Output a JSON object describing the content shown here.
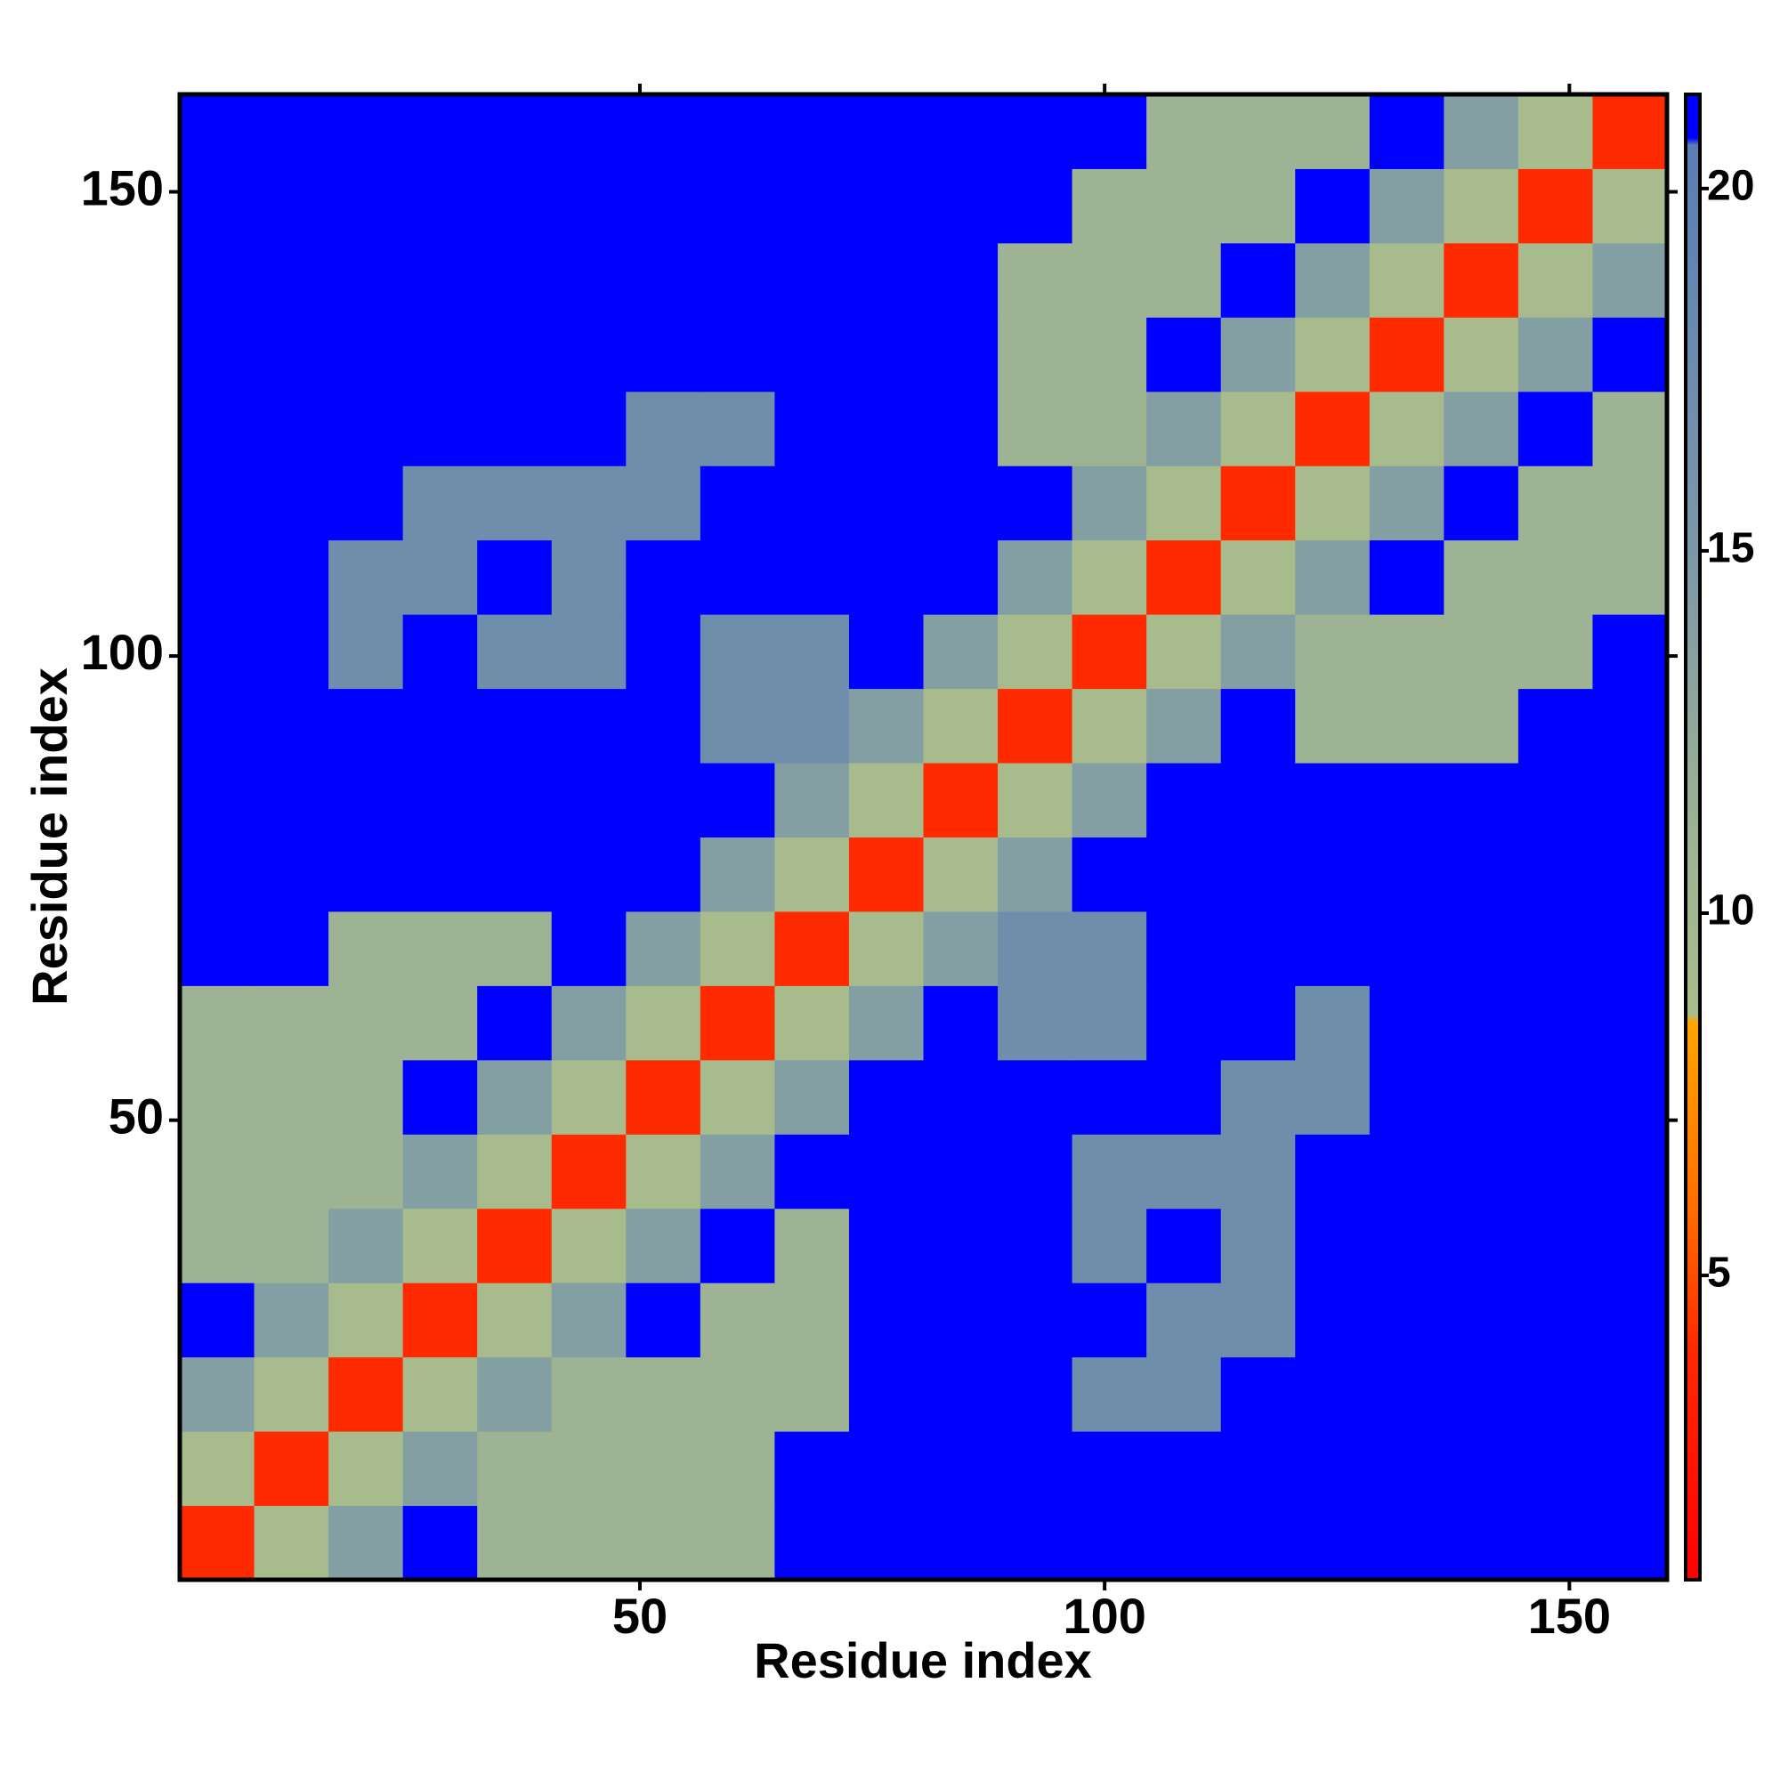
{
  "chart_data": {
    "type": "heatmap",
    "xlabel": "Residue index",
    "ylabel": "Residue index",
    "x": [
      4.5,
      12.5,
      20.5,
      28.5,
      36.5,
      44.5,
      52.5,
      60.5,
      68.5,
      76.5,
      84.5,
      92.5,
      100.5,
      108.5,
      116.5,
      124.5,
      132.5,
      140.5,
      148.5,
      156.5
    ],
    "y": [
      4.5,
      12.5,
      20.5,
      28.5,
      36.5,
      44.5,
      52.5,
      60.5,
      68.5,
      76.5,
      84.5,
      92.5,
      100.5,
      108.5,
      116.5,
      124.5,
      132.5,
      140.5,
      148.5,
      156.5
    ],
    "z": [
      [
        4,
        9,
        14,
        22,
        11,
        11,
        11,
        11,
        22,
        22,
        22,
        22,
        22,
        22,
        22,
        22,
        22,
        22,
        22,
        22
      ],
      [
        9,
        4,
        9,
        14,
        11,
        11,
        11,
        11,
        22,
        22,
        22,
        22,
        22,
        22,
        22,
        22,
        22,
        22,
        22,
        22
      ],
      [
        14,
        9,
        4,
        9,
        14,
        11,
        11,
        11,
        11,
        22,
        22,
        22,
        17,
        17,
        22,
        22,
        22,
        22,
        22,
        22
      ],
      [
        22,
        14,
        9,
        4,
        9,
        14,
        22,
        11,
        11,
        22,
        22,
        22,
        22,
        17,
        17,
        22,
        22,
        22,
        22,
        22
      ],
      [
        11,
        11,
        14,
        9,
        4,
        9,
        14,
        22,
        11,
        22,
        22,
        22,
        17,
        22,
        17,
        22,
        22,
        22,
        22,
        22
      ],
      [
        11,
        11,
        11,
        14,
        9,
        4,
        9,
        14,
        22,
        22,
        22,
        22,
        17,
        17,
        17,
        22,
        22,
        22,
        22,
        22
      ],
      [
        11,
        11,
        11,
        22,
        14,
        9,
        4,
        9,
        14,
        22,
        22,
        22,
        22,
        22,
        17,
        17,
        22,
        22,
        22,
        22
      ],
      [
        11,
        11,
        11,
        11,
        22,
        14,
        9,
        4,
        9,
        14,
        22,
        17,
        17,
        22,
        22,
        17,
        22,
        22,
        22,
        22
      ],
      [
        22,
        22,
        11,
        11,
        11,
        22,
        14,
        9,
        4,
        9,
        14,
        17,
        17,
        22,
        22,
        22,
        22,
        22,
        22,
        22
      ],
      [
        22,
        22,
        22,
        22,
        22,
        22,
        22,
        14,
        9,
        4,
        9,
        14,
        22,
        22,
        22,
        22,
        22,
        22,
        22,
        22
      ],
      [
        22,
        22,
        22,
        22,
        22,
        22,
        22,
        22,
        14,
        9,
        4,
        9,
        14,
        22,
        22,
        22,
        22,
        22,
        22,
        22
      ],
      [
        22,
        22,
        22,
        22,
        22,
        22,
        22,
        17,
        17,
        14,
        9,
        4,
        9,
        14,
        22,
        11,
        11,
        11,
        22,
        22
      ],
      [
        22,
        22,
        17,
        22,
        17,
        17,
        22,
        17,
        17,
        22,
        14,
        9,
        4,
        9,
        14,
        11,
        11,
        11,
        11,
        22
      ],
      [
        22,
        22,
        17,
        17,
        22,
        17,
        22,
        22,
        22,
        22,
        22,
        14,
        9,
        4,
        9,
        14,
        22,
        11,
        11,
        11
      ],
      [
        22,
        22,
        22,
        17,
        17,
        17,
        17,
        22,
        22,
        22,
        22,
        22,
        14,
        9,
        4,
        9,
        14,
        22,
        11,
        11
      ],
      [
        22,
        22,
        22,
        22,
        22,
        22,
        17,
        17,
        22,
        22,
        22,
        11,
        11,
        14,
        9,
        4,
        9,
        14,
        22,
        11
      ],
      [
        22,
        22,
        22,
        22,
        22,
        22,
        22,
        22,
        22,
        22,
        22,
        11,
        11,
        22,
        14,
        9,
        4,
        9,
        14,
        22
      ],
      [
        22,
        22,
        22,
        22,
        22,
        22,
        22,
        22,
        22,
        22,
        22,
        11,
        11,
        11,
        22,
        14,
        9,
        4,
        9,
        14
      ],
      [
        22,
        22,
        22,
        22,
        22,
        22,
        22,
        22,
        22,
        22,
        22,
        22,
        11,
        11,
        11,
        22,
        14,
        9,
        4,
        9
      ],
      [
        22,
        22,
        22,
        22,
        22,
        22,
        22,
        22,
        22,
        22,
        22,
        22,
        22,
        11,
        11,
        11,
        22,
        14,
        9,
        4
      ]
    ],
    "xlim": [
      0.5,
      160.5
    ],
    "ylim": [
      0.5,
      160.5
    ],
    "xticks": [
      50,
      100,
      150
    ],
    "yticks": [
      50,
      100,
      150
    ],
    "zlim": [
      0.8,
      21.3
    ],
    "zticks": [
      5,
      10,
      15,
      20
    ],
    "colorscale": [
      [
        0.8,
        "#ff0000"
      ],
      [
        4,
        "#ff2a00"
      ],
      [
        6,
        "#ff7000"
      ],
      [
        8.5,
        "#ffa500"
      ],
      [
        8.6,
        "#a9bc8c"
      ],
      [
        11,
        "#9db393"
      ],
      [
        15,
        "#7b98a8"
      ],
      [
        20.6,
        "#5a7db4"
      ],
      [
        20.7,
        "#0000ff"
      ]
    ]
  }
}
